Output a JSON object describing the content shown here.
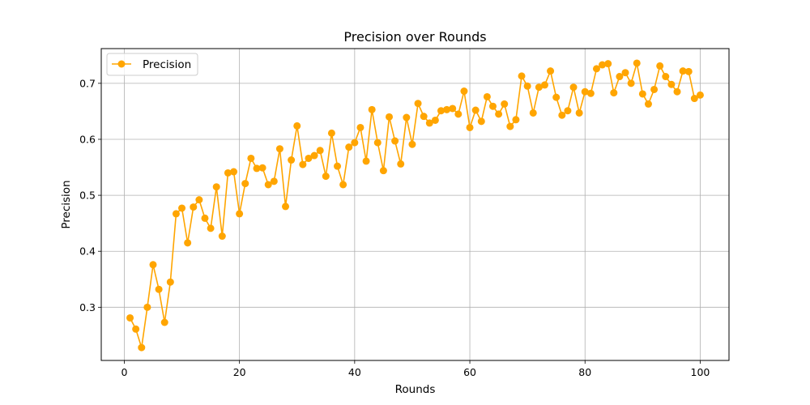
{
  "chart_data": {
    "type": "line",
    "title": "Precision over Rounds",
    "xlabel": "Rounds",
    "ylabel": "Precision",
    "xlim": [
      -4,
      105
    ],
    "ylim": [
      0.205,
      0.762
    ],
    "xticks": [
      0,
      20,
      40,
      60,
      80,
      100
    ],
    "yticks": [
      0.3,
      0.4,
      0.5,
      0.6,
      0.7
    ],
    "xtick_labels": [
      "0",
      "20",
      "40",
      "60",
      "80",
      "100"
    ],
    "ytick_labels": [
      "0.3",
      "0.4",
      "0.5",
      "0.6",
      "0.7"
    ],
    "grid": true,
    "legend_position": "top-left",
    "color": "#ffa500",
    "series": [
      {
        "name": "Precision",
        "x": [
          1,
          2,
          3,
          4,
          5,
          6,
          7,
          8,
          9,
          10,
          11,
          12,
          13,
          14,
          15,
          16,
          17,
          18,
          19,
          20,
          21,
          22,
          23,
          24,
          25,
          26,
          27,
          28,
          29,
          30,
          31,
          32,
          33,
          34,
          35,
          36,
          37,
          38,
          39,
          40,
          41,
          42,
          43,
          44,
          45,
          46,
          47,
          48,
          49,
          50,
          51,
          52,
          53,
          54,
          55,
          56,
          57,
          58,
          59,
          60,
          61,
          62,
          63,
          64,
          65,
          66,
          67,
          68,
          69,
          70,
          71,
          72,
          73,
          74,
          75,
          76,
          77,
          78,
          79,
          80,
          81,
          82,
          83,
          84,
          85,
          86,
          87,
          88,
          89,
          90,
          91,
          92,
          93,
          94,
          95,
          96,
          97,
          98,
          99,
          100
        ],
        "values": [
          0.281,
          0.261,
          0.228,
          0.3,
          0.376,
          0.332,
          0.273,
          0.345,
          0.467,
          0.477,
          0.415,
          0.479,
          0.492,
          0.459,
          0.441,
          0.515,
          0.427,
          0.54,
          0.542,
          0.467,
          0.521,
          0.566,
          0.548,
          0.549,
          0.519,
          0.525,
          0.583,
          0.48,
          0.563,
          0.624,
          0.555,
          0.566,
          0.571,
          0.58,
          0.534,
          0.611,
          0.552,
          0.519,
          0.586,
          0.594,
          0.621,
          0.561,
          0.653,
          0.594,
          0.544,
          0.64,
          0.597,
          0.556,
          0.639,
          0.591,
          0.664,
          0.641,
          0.629,
          0.634,
          0.651,
          0.653,
          0.655,
          0.645,
          0.686,
          0.621,
          0.652,
          0.632,
          0.676,
          0.659,
          0.645,
          0.663,
          0.623,
          0.635,
          0.713,
          0.695,
          0.647,
          0.693,
          0.697,
          0.722,
          0.675,
          0.643,
          0.651,
          0.693,
          0.647,
          0.685,
          0.682,
          0.726,
          0.733,
          0.735,
          0.683,
          0.712,
          0.719,
          0.7,
          0.736,
          0.681,
          0.663,
          0.689,
          0.731,
          0.712,
          0.698,
          0.685,
          0.722,
          0.721,
          0.673,
          0.679
        ]
      }
    ]
  }
}
